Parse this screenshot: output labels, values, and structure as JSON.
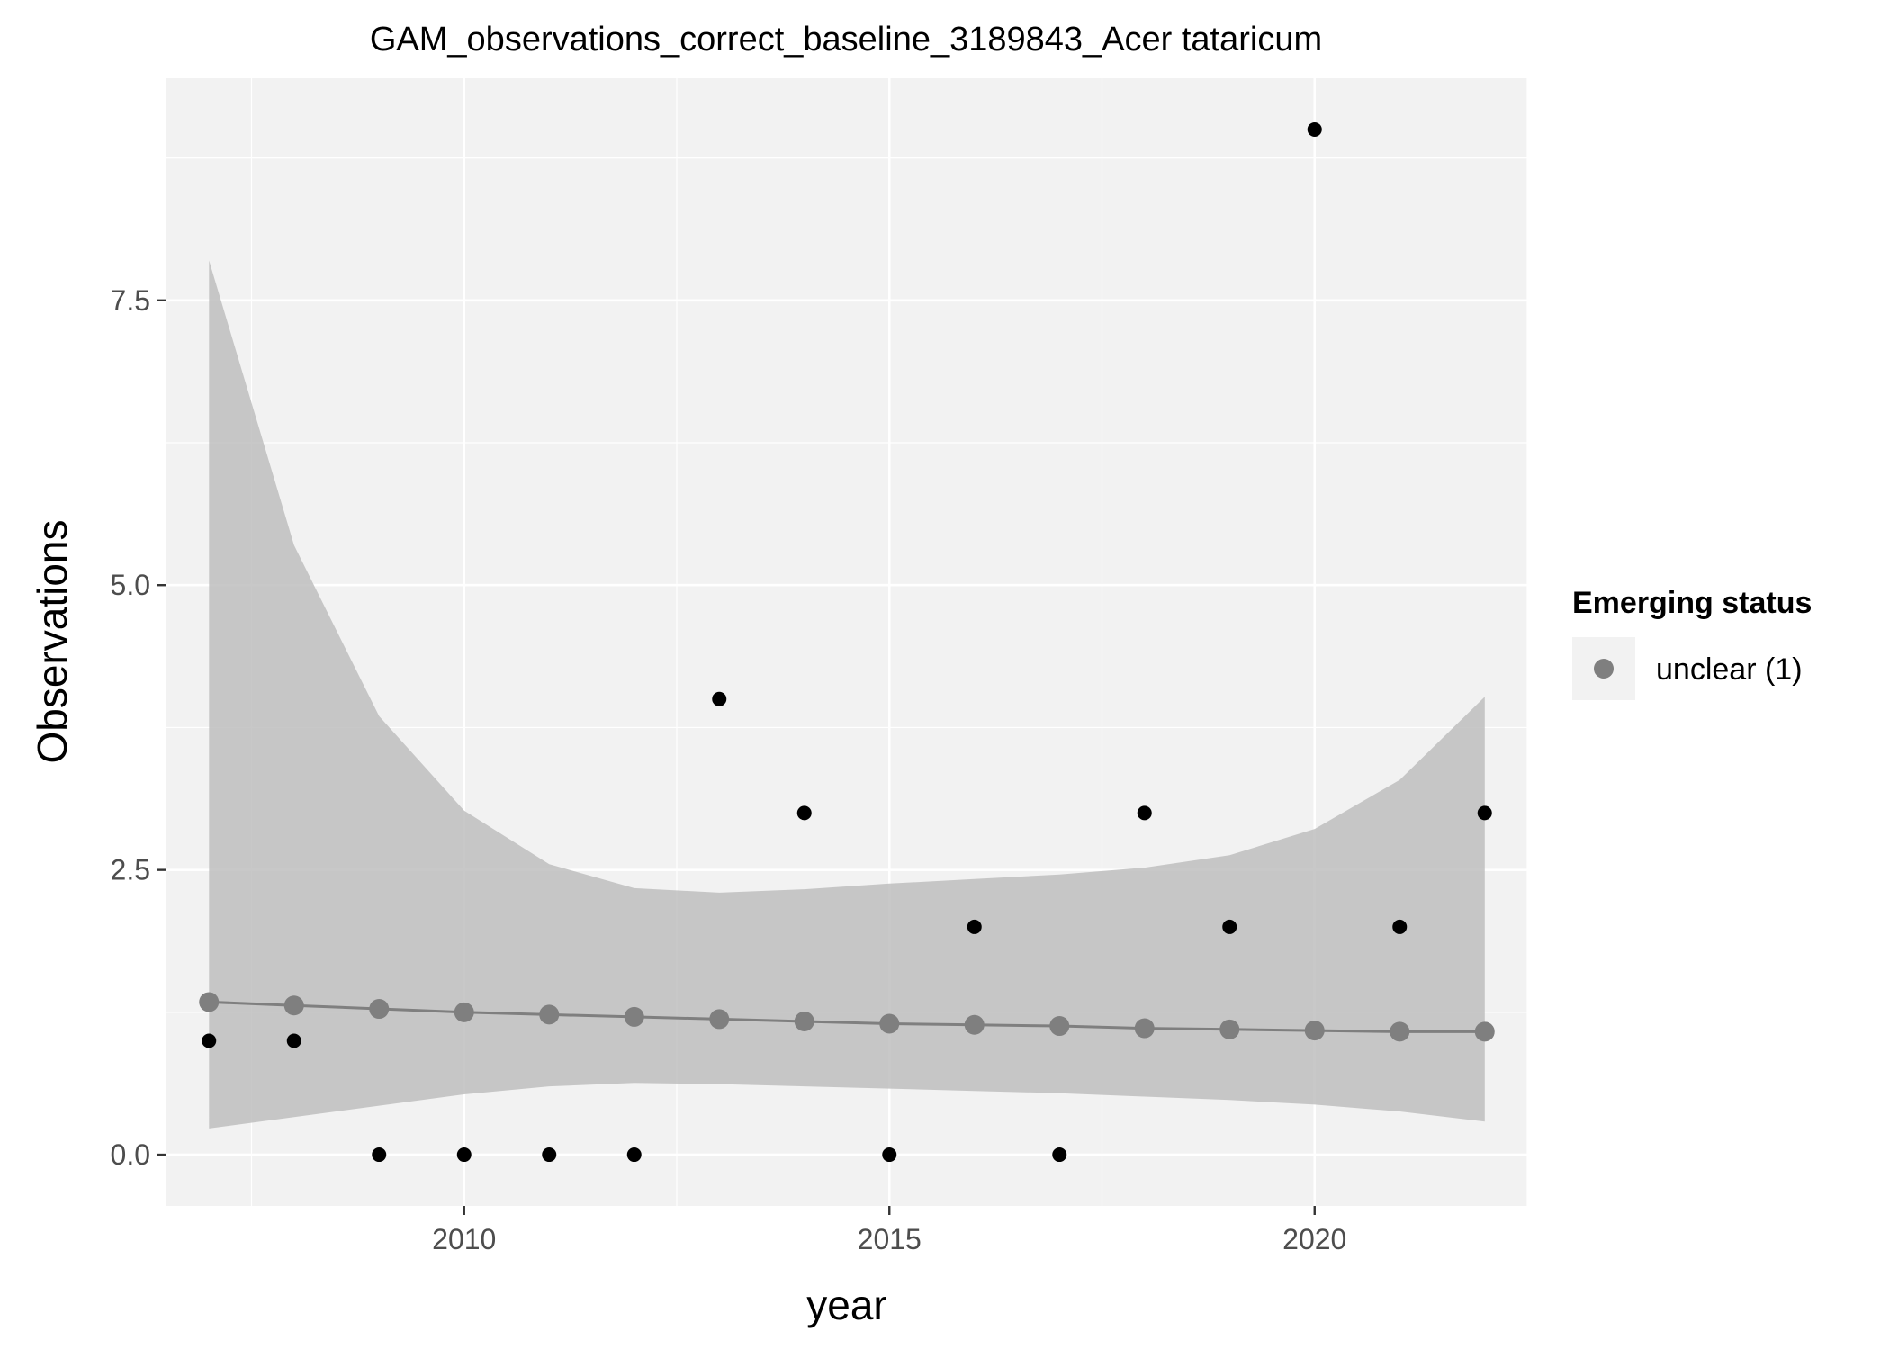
{
  "chart_data": {
    "type": "scatter",
    "title": "GAM_observations_correct_baseline_3189843_Acer tataricum",
    "xlabel": "year",
    "ylabel": "Observations",
    "xlim": [
      2006.5,
      2022.5
    ],
    "ylim": [
      -0.45,
      9.45
    ],
    "x_ticks": [
      2010,
      2015,
      2020
    ],
    "x_tick_labels": [
      "2010",
      "2015",
      "2020"
    ],
    "y_ticks": [
      0.0,
      2.5,
      5.0,
      7.5
    ],
    "y_tick_labels": [
      "0.0",
      "2.5",
      "5.0",
      "7.5"
    ],
    "grid": true,
    "background": "#f2f2f2",
    "observed": {
      "color": "#000000",
      "x": [
        2007,
        2008,
        2009,
        2010,
        2011,
        2012,
        2013,
        2014,
        2015,
        2016,
        2017,
        2018,
        2019,
        2020,
        2021,
        2022
      ],
      "y": [
        1,
        1,
        0,
        0,
        0,
        0,
        4,
        3,
        0,
        2,
        0,
        3,
        2,
        9,
        2,
        3
      ]
    },
    "fitted": {
      "color": "#7f7f7f",
      "ribbon_color": "#bebebe",
      "x": [
        2007,
        2008,
        2009,
        2010,
        2011,
        2012,
        2013,
        2014,
        2015,
        2016,
        2017,
        2018,
        2019,
        2020,
        2021,
        2022
      ],
      "y": [
        1.34,
        1.31,
        1.28,
        1.25,
        1.23,
        1.21,
        1.19,
        1.17,
        1.15,
        1.14,
        1.13,
        1.11,
        1.1,
        1.09,
        1.08,
        1.08
      ],
      "lower": [
        0.23,
        0.33,
        0.43,
        0.53,
        0.6,
        0.63,
        0.62,
        0.6,
        0.58,
        0.56,
        0.54,
        0.51,
        0.48,
        0.44,
        0.38,
        0.29
      ],
      "upper": [
        7.85,
        5.35,
        3.85,
        3.02,
        2.55,
        2.34,
        2.3,
        2.33,
        2.38,
        2.42,
        2.46,
        2.52,
        2.63,
        2.86,
        3.29,
        4.02
      ]
    },
    "legend": {
      "title": "Emerging status",
      "placement": "right",
      "entries": [
        {
          "label": "unclear (1)",
          "color": "#7f7f7f"
        }
      ]
    }
  }
}
